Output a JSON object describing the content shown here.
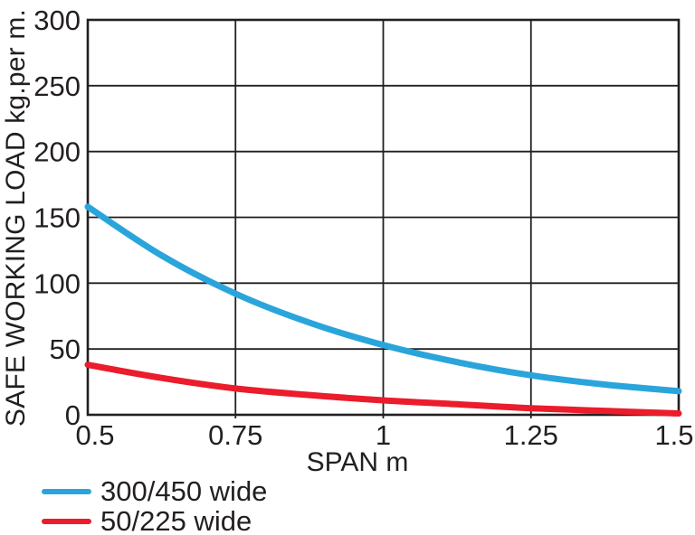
{
  "chart_data": {
    "type": "line",
    "title": "",
    "xlabel": "SPAN m",
    "ylabel": "SAFE WORKING LOAD kg.per m.",
    "xlim": [
      0.5,
      1.5
    ],
    "ylim": [
      0,
      300
    ],
    "x_ticks": [
      0.5,
      0.75,
      1,
      1.25,
      1.5
    ],
    "x_tick_labels": [
      "0.5",
      "0.75",
      "1",
      "1.25",
      "1.5"
    ],
    "y_ticks": [
      0,
      50,
      100,
      150,
      200,
      250,
      300
    ],
    "y_tick_labels": [
      "0",
      "50",
      "100",
      "150",
      "200",
      "250",
      "300"
    ],
    "grid": true,
    "legend_position": "bottom-left-below-axis",
    "axis_color": "#231F20",
    "x": [
      0.5,
      0.625,
      0.75,
      0.875,
      1.0,
      1.125,
      1.25,
      1.375,
      1.5
    ],
    "series": [
      {
        "name": "300/450 wide",
        "color": "#2AA5DB",
        "values": [
          158,
          121,
          92,
          70,
          53,
          40,
          30,
          23,
          18
        ]
      },
      {
        "name": "50/225 wide",
        "color": "#EB1C2B",
        "values": [
          38,
          28,
          20,
          15,
          11,
          8,
          5,
          3,
          1
        ]
      }
    ]
  }
}
